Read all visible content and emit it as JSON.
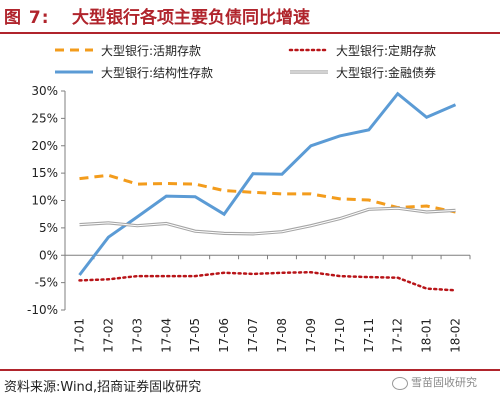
{
  "header": {
    "figure_number": "图 7:",
    "title": "大型银行各项主要负债同比增速"
  },
  "footer": {
    "source": "资料来源:Wind,招商证券固收研究",
    "watermark": "雪苗固收研究"
  },
  "colors": {
    "brand": "#b0242c"
  },
  "chart_data": {
    "type": "line",
    "title": "大型银行各项主要负债同比增速",
    "xlabel": "",
    "ylabel": "",
    "categories": [
      "17-01",
      "17-02",
      "17-03",
      "17-04",
      "17-05",
      "17-06",
      "17-07",
      "17-08",
      "17-09",
      "17-10",
      "17-11",
      "17-12",
      "18-01",
      "18-02"
    ],
    "ylim": [
      -10,
      30
    ],
    "yticks": [
      -10,
      -5,
      0,
      5,
      10,
      15,
      20,
      25,
      30
    ],
    "ytick_labels": [
      "-10%",
      "-5%",
      "0%",
      "5%",
      "10%",
      "15%",
      "20%",
      "25%",
      "30%"
    ],
    "grid": false,
    "legend_position": "top",
    "series": [
      {
        "name": "大型银行:活期存款",
        "color": "#f39c1c",
        "style": "dashed",
        "values": [
          14.0,
          14.6,
          13.0,
          13.1,
          13.0,
          11.8,
          11.5,
          11.2,
          11.2,
          10.3,
          10.1,
          8.7,
          9.0,
          7.9
        ]
      },
      {
        "name": "大型银行:定期存款",
        "color": "#b81418",
        "style": "dotted",
        "values": [
          -4.6,
          -4.4,
          -3.8,
          -3.8,
          -3.8,
          -3.2,
          -3.4,
          -3.2,
          -3.1,
          -3.8,
          -4.0,
          -4.1,
          -6.1,
          -6.4
        ]
      },
      {
        "name": "大型银行:结构性存款",
        "color": "#5b9bd5",
        "style": "solid",
        "values": [
          -3.6,
          3.3,
          7.0,
          10.8,
          10.7,
          7.5,
          14.9,
          14.8,
          20.0,
          21.8,
          22.9,
          29.5,
          25.2,
          27.5
        ]
      },
      {
        "name": "大型银行:金融债券",
        "color": "#a6a6a6",
        "style": "solid-double",
        "values": [
          5.6,
          5.9,
          5.4,
          5.8,
          4.4,
          4.0,
          3.9,
          4.3,
          5.4,
          6.7,
          8.4,
          8.6,
          7.9,
          8.2
        ]
      }
    ]
  }
}
